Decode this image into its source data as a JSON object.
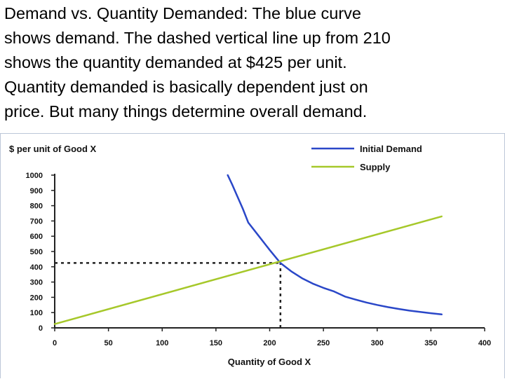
{
  "slide_text": {
    "lines": [
      "Demand vs. Quantity Demanded: The blue curve",
      "shows demand. The dashed vertical line up from 210",
      "shows the quantity demanded at $425 per unit.",
      "Quantity demanded is basically dependent just on",
      "price. But many things determine overall demand."
    ]
  },
  "chart_data": {
    "type": "line",
    "title": "",
    "ylabel": "$ per unit of Good X",
    "xlabel": "Quantity of Good X",
    "xlim": [
      0,
      400
    ],
    "ylim": [
      0,
      1000
    ],
    "x_ticks": [
      0,
      50,
      100,
      150,
      200,
      250,
      300,
      350,
      400
    ],
    "y_ticks": [
      0,
      100,
      200,
      300,
      400,
      500,
      600,
      700,
      800,
      900,
      1000
    ],
    "grid": false,
    "legend_position": "top-right",
    "series": [
      {
        "name": "Initial Demand",
        "color": "#2a47c8",
        "line_style": "solid",
        "x": [
          161,
          165,
          170,
          175,
          180,
          190,
          200,
          210,
          220,
          230,
          240,
          250,
          260,
          270,
          280,
          290,
          300,
          310,
          320,
          330,
          340,
          350,
          360
        ],
        "y": [
          1000,
          940,
          860,
          780,
          690,
          600,
          510,
          425,
          370,
          325,
          290,
          262,
          238,
          205,
          185,
          166,
          150,
          136,
          124,
          113,
          104,
          96,
          88
        ]
      },
      {
        "name": "Supply",
        "color": "#a6c82a",
        "line_style": "solid",
        "x": [
          0,
          360
        ],
        "y": [
          25,
          730
        ]
      }
    ],
    "reference_lines": [
      {
        "orientation": "horizontal",
        "value": 425,
        "from": 0,
        "to": 210,
        "line_style": "dashed",
        "color": "#222222"
      },
      {
        "orientation": "vertical",
        "value": 210,
        "from": 0,
        "to": 425,
        "line_style": "dashed",
        "color": "#222222"
      }
    ]
  }
}
